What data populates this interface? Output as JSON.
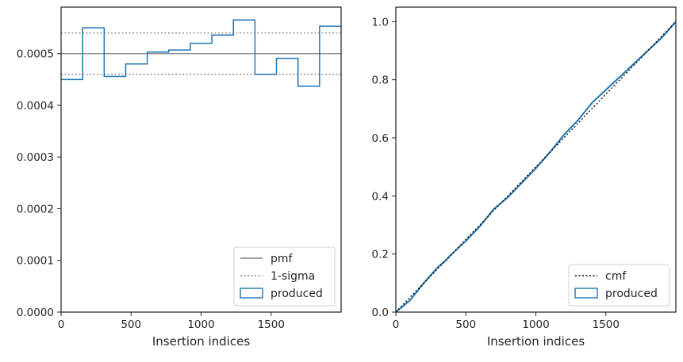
{
  "chart_data": [
    {
      "type": "histogram-step",
      "xlabel": "Insertion indices",
      "ylabel": "",
      "xlim": [
        0,
        2000
      ],
      "ylim": [
        0,
        0.00059
      ],
      "xticks": [
        0,
        500,
        1000,
        1500
      ],
      "xtick_labels": [
        "0",
        "500",
        "1000",
        "1500"
      ],
      "yticks": [
        0,
        0.0001,
        0.0002,
        0.0003,
        0.0004,
        0.0005
      ],
      "ytick_labels": [
        "0.0000",
        "0.0001",
        "0.0002",
        "0.0003",
        "0.0004",
        "0.0005"
      ],
      "grid": false,
      "legend_position": "lower-right",
      "pmf": 0.0005,
      "sigma_band": [
        0.00046,
        0.00054
      ],
      "bin_edges": [
        0,
        153.8,
        307.7,
        461.5,
        615.4,
        769.2,
        923.1,
        1076.9,
        1230.8,
        1384.6,
        1538.5,
        1692.3,
        1846.2,
        2000
      ],
      "values": [
        0.00045,
        0.00055,
        0.000456,
        0.00048,
        0.000503,
        0.000507,
        0.00052,
        0.000536,
        0.000565,
        0.00046,
        0.000491,
        0.000437,
        0.000553
      ],
      "series": [
        {
          "name": "pmf",
          "style": "solid",
          "color": "#808080"
        },
        {
          "name": "1-sigma",
          "style": "dotted",
          "color": "#808080"
        },
        {
          "name": "produced",
          "style": "step",
          "color": "#1f77b4"
        }
      ]
    },
    {
      "type": "line",
      "xlabel": "Insertion indices",
      "ylabel": "",
      "xlim": [
        0,
        2000
      ],
      "ylim": [
        0,
        1.05
      ],
      "xticks": [
        0,
        500,
        1000,
        1500
      ],
      "xtick_labels": [
        "0",
        "500",
        "1000",
        "1500"
      ],
      "yticks": [
        0,
        0.2,
        0.4,
        0.6,
        0.8,
        1.0
      ],
      "ytick_labels": [
        "0.0",
        "0.2",
        "0.4",
        "0.6",
        "0.8",
        "1.0"
      ],
      "grid": false,
      "legend_position": "lower-right",
      "cmf": {
        "x": [
          0,
          2000
        ],
        "y": [
          0,
          1.0
        ]
      },
      "produced": {
        "x": [
          0,
          100,
          200,
          300,
          350,
          400,
          500,
          600,
          700,
          800,
          900,
          1000,
          1100,
          1200,
          1300,
          1400,
          1500,
          1600,
          1700,
          1800,
          1900,
          2000
        ],
        "y": [
          0,
          0.04,
          0.1,
          0.155,
          0.175,
          0.2,
          0.245,
          0.295,
          0.355,
          0.395,
          0.445,
          0.495,
          0.55,
          0.61,
          0.66,
          0.72,
          0.765,
          0.81,
          0.855,
          0.9,
          0.945,
          1.0
        ]
      },
      "series": [
        {
          "name": "cmf",
          "style": "dotted",
          "color": "#000000"
        },
        {
          "name": "produced",
          "style": "line",
          "color": "#1f77b4"
        }
      ]
    }
  ]
}
